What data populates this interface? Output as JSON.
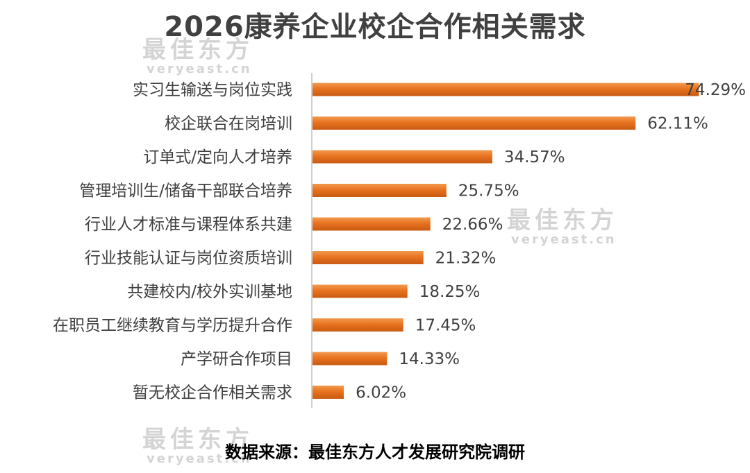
{
  "chart_data": {
    "type": "bar",
    "orientation": "horizontal",
    "title": "2026康养企业校企合作相关需求",
    "categories": [
      "实习生输送与岗位实践",
      "校企联合在岗培训",
      "订单式/定向人才培养",
      "管理培训生/储备干部联合培养",
      "行业人才标准与课程体系共建",
      "行业技能认证与岗位资质培训",
      "共建校内/校外实训基地",
      "在职员工继续教育与学历提升合作",
      "产学研合作项目",
      "暂无校企合作相关需求"
    ],
    "values": [
      74.29,
      62.11,
      34.57,
      25.75,
      22.66,
      21.32,
      18.25,
      17.45,
      14.33,
      6.02
    ],
    "value_labels": [
      "74.29%",
      "62.11%",
      "34.57%",
      "25.75%",
      "22.66%",
      "21.32%",
      "18.25%",
      "17.45%",
      "14.33%",
      "6.02%"
    ],
    "xlim": [
      0,
      80
    ],
    "grid": false,
    "legend": "none",
    "bar_color": "#e87320",
    "bar_color_dark": "#c85a12",
    "bar_color_light": "#f29a4e"
  },
  "source": "数据来源：最佳东方人才发展研究院调研",
  "watermark": {
    "cn": "最佳东方",
    "en": "veryeast.cn"
  }
}
